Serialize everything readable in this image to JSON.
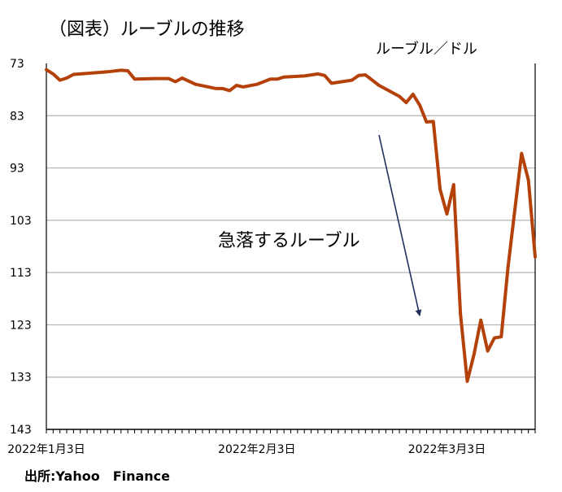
{
  "figure_title": "（図表）ルーブルの推移",
  "unit_label": "ルーブル／ドル",
  "source": "出所:Yahoo　Finance",
  "annotation": "急落するルーブル",
  "colors": {
    "line": "#b5410a",
    "arrow": "#1f2f5e",
    "grid": "#b3b3b3",
    "axis": "#000000"
  },
  "chart_data": {
    "type": "line",
    "title": "（図表）ルーブルの推移",
    "ylabel": "ルーブル／ドル",
    "y_inverted": true,
    "ylim": [
      73,
      143
    ],
    "yticks": [
      73,
      83,
      93,
      103,
      113,
      123,
      133,
      143
    ],
    "xlim": [
      "2022-01-03",
      "2022-03-16"
    ],
    "xticks": [
      {
        "date": "2022-01-03",
        "label": "2022年1月3日"
      },
      {
        "date": "2022-02-03",
        "label": "2022年2月3日"
      },
      {
        "date": "2022-03-03",
        "label": "2022年3月3日"
      }
    ],
    "grid": true,
    "series": [
      {
        "points": [
          [
            "2022-01-03",
            74.2
          ],
          [
            "2022-01-04",
            75.0
          ],
          [
            "2022-01-05",
            76.2
          ],
          [
            "2022-01-06",
            75.8
          ],
          [
            "2022-01-07",
            75.1
          ],
          [
            "2022-01-09",
            74.9
          ],
          [
            "2022-01-12",
            74.6
          ],
          [
            "2022-01-14",
            74.3
          ],
          [
            "2022-01-15",
            74.4
          ],
          [
            "2022-01-16",
            76.0
          ],
          [
            "2022-01-19",
            75.9
          ],
          [
            "2022-01-21",
            75.9
          ],
          [
            "2022-01-22",
            76.5
          ],
          [
            "2022-01-23",
            75.8
          ],
          [
            "2022-01-25",
            77.0
          ],
          [
            "2022-01-28",
            77.8
          ],
          [
            "2022-01-29",
            77.8
          ],
          [
            "2022-01-30",
            78.2
          ],
          [
            "2022-01-31",
            77.2
          ],
          [
            "2022-02-01",
            77.5
          ],
          [
            "2022-02-03",
            77.0
          ],
          [
            "2022-02-05",
            76.0
          ],
          [
            "2022-02-06",
            76.0
          ],
          [
            "2022-02-07",
            75.6
          ],
          [
            "2022-02-10",
            75.4
          ],
          [
            "2022-02-12",
            75.0
          ],
          [
            "2022-02-13",
            75.3
          ],
          [
            "2022-02-14",
            76.8
          ],
          [
            "2022-02-17",
            76.2
          ],
          [
            "2022-02-18",
            75.3
          ],
          [
            "2022-02-19",
            75.2
          ],
          [
            "2022-02-21",
            77.2
          ],
          [
            "2022-02-24",
            79.3
          ],
          [
            "2022-02-25",
            80.5
          ],
          [
            "2022-02-26",
            78.9
          ],
          [
            "2022-02-27",
            81.0
          ],
          [
            "2022-02-28",
            84.2
          ],
          [
            "2022-03-01",
            84.1
          ],
          [
            "2022-03-02",
            97.1
          ],
          [
            "2022-03-03",
            101.8
          ],
          [
            "2022-03-04",
            96.2
          ],
          [
            "2022-03-05",
            121.0
          ],
          [
            "2022-03-06",
            133.8
          ],
          [
            "2022-03-07",
            128.6
          ],
          [
            "2022-03-08",
            122.1
          ],
          [
            "2022-03-09",
            128.0
          ],
          [
            "2022-03-10",
            125.5
          ],
          [
            "2022-03-11",
            125.3
          ],
          [
            "2022-03-12",
            112.0
          ],
          [
            "2022-03-14",
            90.2
          ],
          [
            "2022-03-15",
            95.3
          ],
          [
            "2022-03-16",
            110.0
          ]
        ]
      }
    ]
  }
}
